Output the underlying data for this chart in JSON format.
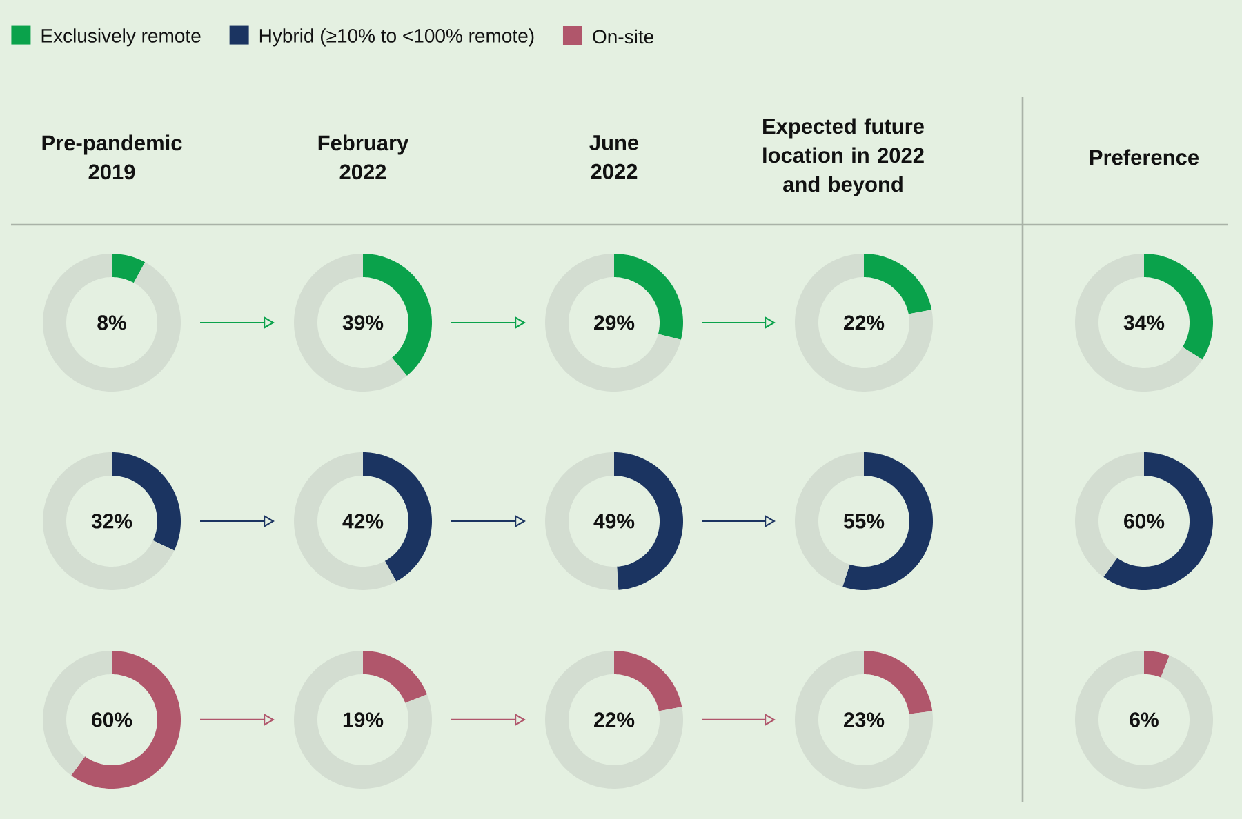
{
  "chart_data": [
    {
      "type": "other",
      "legend": "top",
      "series": [
        {
          "name": "Exclusively remote",
          "color": "#0aa24b"
        },
        {
          "name": "Hybrid (≥10% to <100% remote)",
          "color": "#1b3461"
        },
        {
          "name": "On-site",
          "color": "#b0566b"
        }
      ]
    },
    {
      "type": "donut",
      "title": "Pre-pandemic 2019",
      "categories": [
        null,
        null
      ],
      "values": [
        8,
        92
      ],
      "colors": [
        "#0aa24b",
        "#d3ddd1"
      ],
      "annotations": [
        "8%"
      ]
    },
    {
      "type": "donut",
      "title": "February 2022",
      "categories": [
        null,
        null
      ],
      "values": [
        39,
        61
      ],
      "colors": [
        "#0aa24b",
        "#d3ddd1"
      ],
      "annotations": [
        "39%"
      ]
    },
    {
      "type": "donut",
      "title": "June 2022",
      "categories": [
        null,
        null
      ],
      "values": [
        29,
        71
      ],
      "colors": [
        "#0aa24b",
        "#d3ddd1"
      ],
      "annotations": [
        "29%"
      ]
    },
    {
      "type": "donut",
      "title": "Expected future location in 2022 and beyond",
      "categories": [
        null,
        null
      ],
      "values": [
        22,
        78
      ],
      "colors": [
        "#0aa24b",
        "#d3ddd1"
      ],
      "annotations": [
        "22%"
      ]
    },
    {
      "type": "donut",
      "title": "Preference",
      "categories": [
        null,
        null
      ],
      "values": [
        34,
        66
      ],
      "colors": [
        "#0aa24b",
        "#d3ddd1"
      ],
      "annotations": [
        "34%"
      ]
    },
    {
      "type": "donut",
      "categories": [
        null,
        null
      ],
      "values": [
        32,
        68
      ],
      "colors": [
        "#1b3461",
        "#d3ddd1"
      ],
      "annotations": [
        "32%"
      ]
    },
    {
      "type": "donut",
      "categories": [
        null,
        null
      ],
      "values": [
        42,
        58
      ],
      "colors": [
        "#1b3461",
        "#d3ddd1"
      ],
      "annotations": [
        "42%"
      ]
    },
    {
      "type": "donut",
      "categories": [
        null,
        null
      ],
      "values": [
        49,
        51
      ],
      "colors": [
        "#1b3461",
        "#d3ddd1"
      ],
      "annotations": [
        "49%"
      ]
    },
    {
      "type": "donut",
      "categories": [
        null,
        null
      ],
      "values": [
        55,
        45
      ],
      "colors": [
        "#1b3461",
        "#d3ddd1"
      ],
      "annotations": [
        "55%"
      ]
    },
    {
      "type": "donut",
      "categories": [
        null,
        null
      ],
      "values": [
        60,
        40
      ],
      "colors": [
        "#1b3461",
        "#d3ddd1"
      ],
      "annotations": [
        "60%"
      ]
    },
    {
      "type": "donut",
      "categories": [
        null,
        null
      ],
      "values": [
        60,
        40
      ],
      "colors": [
        "#b0566b",
        "#d3ddd1"
      ],
      "annotations": [
        "60%"
      ]
    },
    {
      "type": "donut",
      "categories": [
        null,
        null
      ],
      "values": [
        19,
        81
      ],
      "colors": [
        "#b0566b",
        "#d3ddd1"
      ],
      "annotations": [
        "19%"
      ]
    },
    {
      "type": "donut",
      "categories": [
        null,
        null
      ],
      "values": [
        22,
        78
      ],
      "colors": [
        "#b0566b",
        "#d3ddd1"
      ],
      "annotations": [
        "22%"
      ]
    },
    {
      "type": "donut",
      "categories": [
        null,
        null
      ],
      "values": [
        23,
        77
      ],
      "colors": [
        "#b0566b",
        "#d3ddd1"
      ],
      "annotations": [
        "23%"
      ]
    },
    {
      "type": "donut",
      "categories": [
        null,
        null
      ],
      "values": [
        6,
        94
      ],
      "colors": [
        "#b0566b",
        "#d3ddd1"
      ],
      "annotations": [
        "6%"
      ]
    }
  ]
}
